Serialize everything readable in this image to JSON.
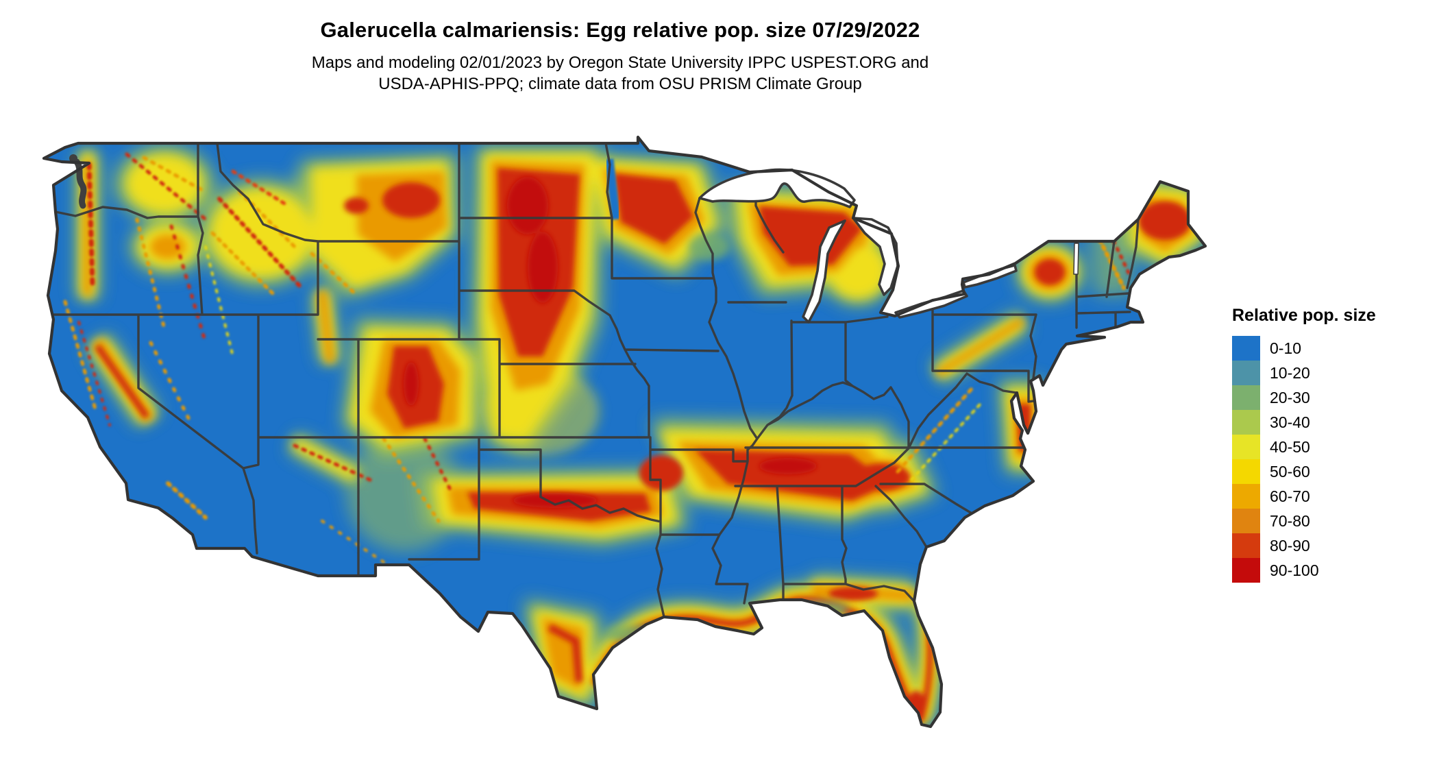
{
  "header": {
    "title": "Galerucella calmariensis: Egg relative pop. size 07/29/2022",
    "subtitle_line1": "Maps and modeling 02/01/2023 by Oregon State University IPPC USPEST.ORG and",
    "subtitle_line2": "USDA-APHIS-PPQ; climate data from OSU PRISM Climate Group"
  },
  "legend": {
    "title": "Relative pop. size",
    "items": [
      {
        "label": "0-10",
        "color": "#1d73c8"
      },
      {
        "label": "10-20",
        "color": "#4d93a8"
      },
      {
        "label": "20-30",
        "color": "#7cb06e"
      },
      {
        "label": "30-40",
        "color": "#abc94d"
      },
      {
        "label": "40-50",
        "color": "#e7e426"
      },
      {
        "label": "50-60",
        "color": "#f4d800"
      },
      {
        "label": "60-70",
        "color": "#eda900"
      },
      {
        "label": "70-80",
        "color": "#e08410"
      },
      {
        "label": "80-90",
        "color": "#d53b0e"
      },
      {
        "label": "90-100",
        "color": "#c40b0b"
      }
    ]
  },
  "map": {
    "land_base_color": "#1d73c8",
    "border_color": "#3a3a3a",
    "water_color": "#ffffff",
    "map_kind": "CONUS raster heat map with state boundaries"
  }
}
